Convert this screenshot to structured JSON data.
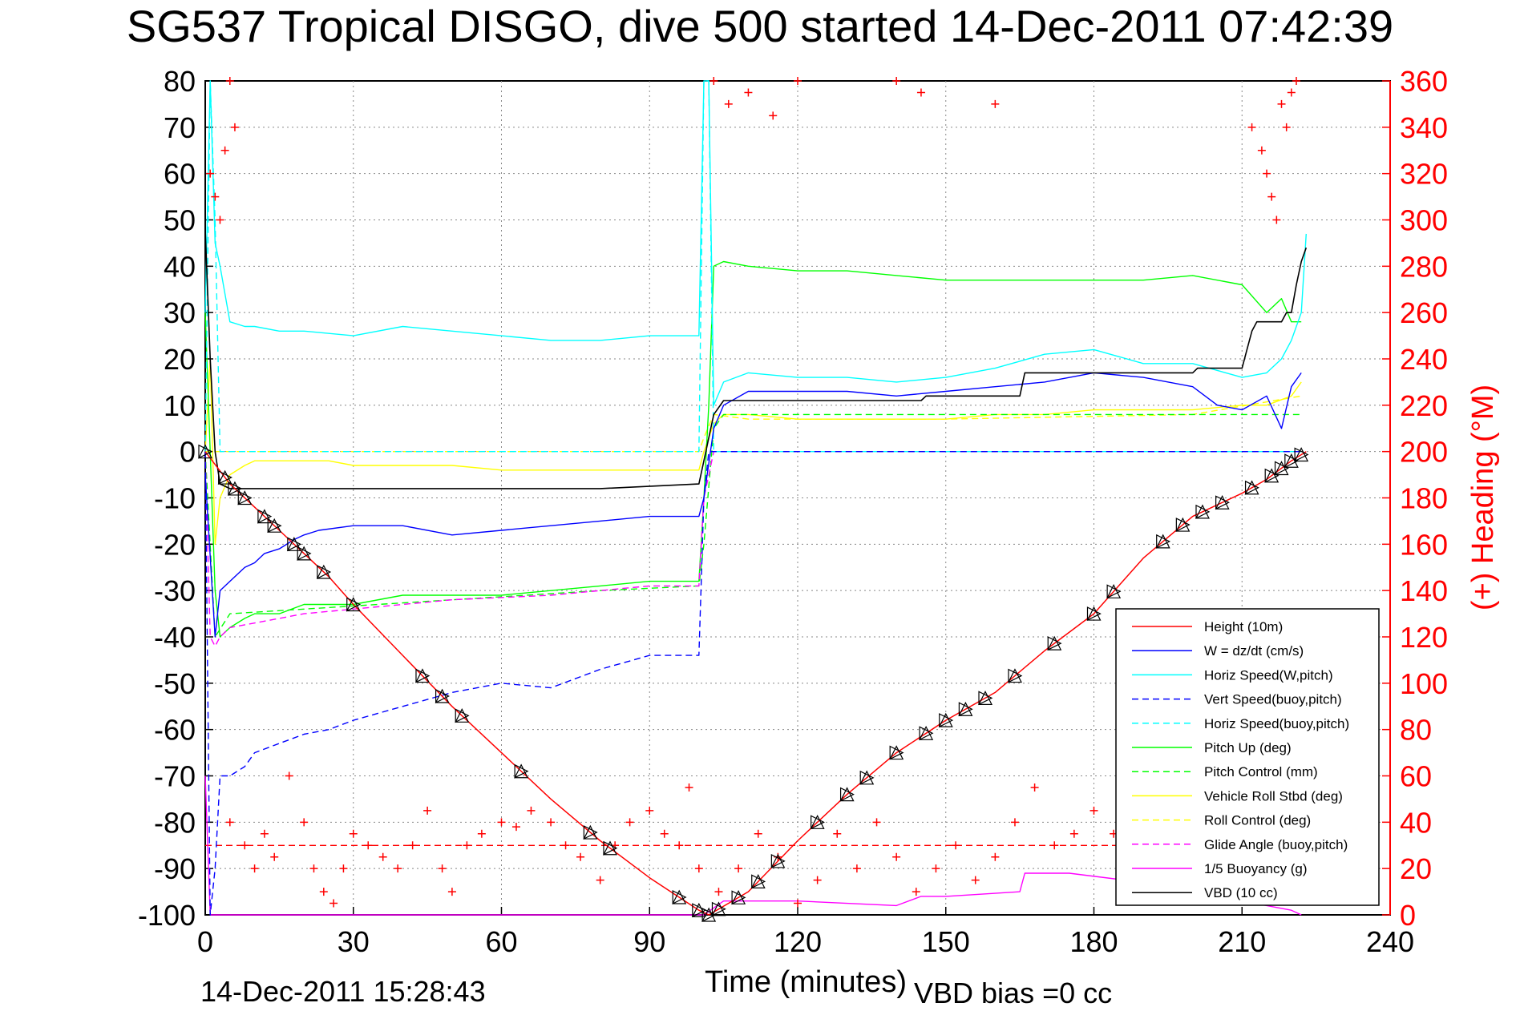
{
  "title": "SG537 Tropical DISGO, dive 500 started 14-Dec-2011 07:42:39",
  "footer": {
    "timestamp": "14-Dec-2011 15:28:43",
    "vbd_bias": "VBD bias =0 cc"
  },
  "colors": {
    "height": "#ff0000",
    "w": "#0000ff",
    "horiz_speed": "#00ffff",
    "pitch": "#00ff00",
    "roll": "#ffff00",
    "glide": "#ff00ff",
    "vbd": "#000000"
  },
  "chart_data": {
    "type": "line",
    "xlabel": "Time (minutes)",
    "ylabel_right": "(+) Heading (°M)",
    "xlim": [
      0,
      240
    ],
    "ylim": [
      -100,
      80
    ],
    "ylim_right": [
      0,
      360
    ],
    "xticks": [
      "0",
      "30",
      "60",
      "90",
      "120",
      "150",
      "180",
      "210",
      "240"
    ],
    "yticks": [
      "80",
      "70",
      "60",
      "50",
      "40",
      "30",
      "20",
      "10",
      "0",
      "-10",
      "-20",
      "-30",
      "-40",
      "-50",
      "-60",
      "-70",
      "-80",
      "-90",
      "-100"
    ],
    "yticks_right": [
      "360",
      "340",
      "320",
      "300",
      "280",
      "260",
      "240",
      "220",
      "200",
      "180",
      "160",
      "140",
      "120",
      "100",
      "80",
      "60",
      "40",
      "20",
      "0"
    ],
    "grid": true,
    "legend_position": "bottom-right",
    "legend": [
      {
        "label": "Height (10m)",
        "color": "#ff0000",
        "style": "solid"
      },
      {
        "label": "W = dz/dt (cm/s)",
        "color": "#0000ff",
        "style": "solid"
      },
      {
        "label": "Horiz Speed(W,pitch)",
        "color": "#00ffff",
        "style": "solid"
      },
      {
        "label": "Vert Speed(buoy,pitch)",
        "color": "#0000ff",
        "style": "dashed"
      },
      {
        "label": "Horiz Speed(buoy,pitch)",
        "color": "#00ffff",
        "style": "dashed"
      },
      {
        "label": "Pitch Up (deg)",
        "color": "#00ff00",
        "style": "solid"
      },
      {
        "label": "Pitch Control (mm)",
        "color": "#00ff00",
        "style": "dashed"
      },
      {
        "label": "Vehicle Roll Stbd (deg)",
        "color": "#ffff00",
        "style": "solid"
      },
      {
        "label": "Roll Control (deg)",
        "color": "#ffff00",
        "style": "dashed"
      },
      {
        "label": "Glide Angle (buoy,pitch)",
        "color": "#ff00ff",
        "style": "dashed"
      },
      {
        "label": "1/5 Buoyancy (g)",
        "color": "#ff00ff",
        "style": "solid"
      },
      {
        "label": "VBD (10 cc)",
        "color": "#000000",
        "style": "solid"
      }
    ],
    "series": [
      {
        "key": "height",
        "x": [
          0,
          5,
          10,
          15,
          20,
          25,
          30,
          40,
          50,
          60,
          70,
          80,
          90,
          100,
          102,
          110,
          120,
          130,
          140,
          150,
          160,
          170,
          180,
          190,
          200,
          210,
          215,
          220,
          223
        ],
        "y": [
          0,
          -7,
          -12,
          -17,
          -22,
          -27,
          -33,
          -44,
          -55,
          -65,
          -75,
          -84,
          -92,
          -99,
          -100,
          -95,
          -84,
          -74,
          -65,
          -58,
          -52,
          -43,
          -35,
          -23,
          -14,
          -9,
          -6,
          -2,
          0
        ]
      },
      {
        "key": "w",
        "x": [
          0,
          2,
          3,
          5,
          8,
          10,
          12,
          15,
          18,
          20,
          23,
          30,
          40,
          50,
          60,
          70,
          80,
          90,
          95,
          100,
          101,
          103,
          105,
          110,
          120,
          130,
          140,
          150,
          160,
          170,
          180,
          190,
          200,
          205,
          210,
          215,
          218,
          220,
          222
        ],
        "y": [
          -5,
          -40,
          -30,
          -28,
          -25,
          -24,
          -22,
          -21,
          -19,
          -18,
          -17,
          -16,
          -16,
          -18,
          -17,
          -16,
          -15,
          -14,
          -14,
          -14,
          -10,
          5,
          10,
          13,
          13,
          13,
          12,
          13,
          14,
          15,
          17,
          16,
          14,
          10,
          9,
          12,
          5,
          14,
          17
        ]
      },
      {
        "key": "horiz_speed",
        "x": [
          0,
          1,
          2,
          3,
          5,
          8,
          10,
          15,
          20,
          30,
          40,
          50,
          60,
          70,
          80,
          90,
          100,
          101,
          102,
          103,
          105,
          110,
          120,
          130,
          140,
          150,
          160,
          170,
          180,
          190,
          200,
          210,
          215,
          218,
          220,
          222,
          223
        ],
        "y": [
          30,
          80,
          45,
          40,
          28,
          27,
          27,
          26,
          26,
          25,
          27,
          26,
          25,
          24,
          24,
          25,
          25,
          80,
          80,
          10,
          15,
          17,
          16,
          16,
          15,
          16,
          18,
          21,
          22,
          19,
          19,
          16,
          17,
          20,
          24,
          30,
          47
        ]
      },
      {
        "key": "vert_speed_buoy",
        "x": [
          0,
          1,
          2,
          3,
          5,
          8,
          10,
          15,
          20,
          25,
          30,
          40,
          50,
          60,
          70,
          80,
          90,
          100,
          101,
          102,
          105,
          110,
          150,
          200,
          222
        ],
        "y": [
          0,
          -100,
          -90,
          -70,
          -70,
          -68,
          -65,
          -63,
          -61,
          -60,
          -58,
          -55,
          -52,
          -50,
          -51,
          -47,
          -44,
          -44,
          -10,
          0,
          0,
          0,
          0,
          0,
          0
        ]
      },
      {
        "key": "horiz_speed_buoy",
        "x": [
          0,
          1,
          2,
          3,
          4,
          5,
          10,
          20,
          100,
          101,
          102,
          103,
          104,
          222
        ],
        "y": [
          0,
          80,
          50,
          0,
          0,
          0,
          0,
          0,
          0,
          80,
          80,
          0,
          0,
          0
        ]
      },
      {
        "key": "pitch_up",
        "x": [
          0,
          1,
          2,
          3,
          5,
          8,
          10,
          15,
          20,
          25,
          30,
          40,
          50,
          60,
          70,
          80,
          90,
          100,
          101,
          102,
          103,
          105,
          110,
          120,
          130,
          140,
          150,
          160,
          170,
          180,
          190,
          200,
          210,
          215,
          218,
          220,
          222
        ],
        "y": [
          30,
          0,
          -30,
          -40,
          -38,
          -36,
          -35,
          -35,
          -33,
          -33,
          -33,
          -31,
          -31,
          -31,
          -30,
          -29,
          -28,
          -28,
          -10,
          10,
          40,
          41,
          40,
          39,
          39,
          38,
          37,
          37,
          37,
          37,
          37,
          38,
          36,
          30,
          33,
          28,
          28
        ]
      },
      {
        "key": "pitch_control",
        "x": [
          0,
          2,
          5,
          20,
          50,
          80,
          100,
          101,
          103,
          105,
          110,
          150,
          200,
          222
        ],
        "y": [
          0,
          -40,
          -35,
          -34,
          -32,
          -30,
          -29,
          -20,
          5,
          8,
          8,
          8,
          8,
          8
        ]
      },
      {
        "key": "roll",
        "x": [
          0,
          1,
          2,
          3,
          5,
          8,
          10,
          15,
          20,
          25,
          30,
          40,
          50,
          60,
          70,
          80,
          90,
          100,
          101,
          103,
          105,
          110,
          120,
          130,
          140,
          150,
          160,
          170,
          180,
          190,
          200,
          210,
          215,
          220,
          222
        ],
        "y": [
          0,
          20,
          -20,
          -10,
          -5,
          -3,
          -2,
          -2,
          -2,
          -2,
          -3,
          -3,
          -3,
          -4,
          -4,
          -4,
          -4,
          -4,
          0,
          6,
          8,
          8,
          7,
          7,
          7,
          7,
          8,
          8,
          9,
          9,
          9,
          10,
          10,
          12,
          15
        ]
      },
      {
        "key": "roll_control",
        "x": [
          0,
          5,
          10,
          20,
          50,
          80,
          100,
          101,
          103,
          110,
          150,
          200,
          222
        ],
        "y": [
          0,
          0,
          0,
          0,
          0,
          0,
          0,
          3,
          8,
          7,
          7,
          8,
          12
        ]
      },
      {
        "key": "glide_angle",
        "x": [
          0,
          1,
          2,
          3,
          5,
          10,
          20,
          30,
          50,
          70,
          90,
          100,
          101,
          103,
          110,
          150,
          200,
          222
        ],
        "y": [
          0,
          -40,
          -42,
          -40,
          -38,
          -37,
          -35,
          -34,
          -32,
          -31,
          -29,
          -29,
          -10,
          0,
          0,
          0,
          0,
          0
        ]
      },
      {
        "key": "buoyancy",
        "x": [
          0,
          1,
          2,
          3,
          100,
          101,
          105,
          120,
          140,
          145,
          150,
          165,
          166,
          175,
          190,
          200,
          210,
          220,
          222
        ],
        "y": [
          -70,
          -100,
          -100,
          -100,
          -100,
          -100,
          -97,
          -97,
          -98,
          -96,
          -96,
          -95,
          -91,
          -91,
          -93,
          -95,
          -97,
          -99,
          -100
        ]
      },
      {
        "key": "vbd",
        "x": [
          0,
          1,
          2,
          3,
          5,
          50,
          80,
          100,
          101,
          103,
          105,
          120,
          145,
          146,
          165,
          166,
          200,
          201,
          210,
          211,
          212,
          213,
          218,
          219,
          220,
          221,
          222,
          223
        ],
        "y": [
          48,
          20,
          0,
          -7,
          -8,
          -8,
          -8,
          -7,
          -2,
          8,
          11,
          11,
          11,
          12,
          12,
          17,
          17,
          18,
          18,
          22,
          26,
          28,
          28,
          30,
          30,
          36,
          41,
          44
        ]
      },
      {
        "key": "heading_mean",
        "x": [
          0,
          222
        ],
        "y": [
          30,
          30
        ]
      }
    ],
    "heading_points_deg": [
      [
        1,
        320
      ],
      [
        2,
        310
      ],
      [
        3,
        300
      ],
      [
        4,
        330
      ],
      [
        5,
        360
      ],
      [
        6,
        340
      ],
      [
        5,
        40
      ],
      [
        8,
        30
      ],
      [
        10,
        20
      ],
      [
        12,
        35
      ],
      [
        14,
        25
      ],
      [
        17,
        60
      ],
      [
        20,
        40
      ],
      [
        22,
        20
      ],
      [
        24,
        10
      ],
      [
        26,
        5
      ],
      [
        28,
        20
      ],
      [
        30,
        35
      ],
      [
        33,
        30
      ],
      [
        36,
        25
      ],
      [
        39,
        20
      ],
      [
        42,
        30
      ],
      [
        45,
        45
      ],
      [
        48,
        20
      ],
      [
        50,
        10
      ],
      [
        53,
        30
      ],
      [
        56,
        35
      ],
      [
        60,
        40
      ],
      [
        63,
        38
      ],
      [
        66,
        45
      ],
      [
        70,
        40
      ],
      [
        73,
        30
      ],
      [
        76,
        25
      ],
      [
        80,
        15
      ],
      [
        83,
        30
      ],
      [
        86,
        40
      ],
      [
        90,
        45
      ],
      [
        93,
        35
      ],
      [
        96,
        30
      ],
      [
        98,
        55
      ],
      [
        100,
        20
      ],
      [
        103,
        360
      ],
      [
        106,
        350
      ],
      [
        110,
        355
      ],
      [
        115,
        345
      ],
      [
        120,
        360
      ],
      [
        140,
        360
      ],
      [
        145,
        355
      ],
      [
        160,
        350
      ],
      [
        104,
        10
      ],
      [
        108,
        20
      ],
      [
        112,
        35
      ],
      [
        116,
        25
      ],
      [
        120,
        5
      ],
      [
        124,
        15
      ],
      [
        128,
        35
      ],
      [
        132,
        20
      ],
      [
        136,
        40
      ],
      [
        140,
        25
      ],
      [
        144,
        10
      ],
      [
        148,
        20
      ],
      [
        152,
        30
      ],
      [
        156,
        15
      ],
      [
        160,
        25
      ],
      [
        164,
        40
      ],
      [
        168,
        55
      ],
      [
        172,
        30
      ],
      [
        176,
        35
      ],
      [
        180,
        45
      ],
      [
        184,
        35
      ],
      [
        188,
        20
      ],
      [
        192,
        30
      ],
      [
        196,
        25
      ],
      [
        200,
        15
      ],
      [
        204,
        20
      ],
      [
        208,
        10
      ],
      [
        212,
        340
      ],
      [
        214,
        330
      ],
      [
        215,
        320
      ],
      [
        216,
        310
      ],
      [
        217,
        300
      ],
      [
        218,
        350
      ],
      [
        219,
        340
      ],
      [
        220,
        355
      ],
      [
        221,
        360
      ]
    ],
    "triangle_marker_times": [
      0,
      4,
      6,
      8,
      12,
      14,
      18,
      20,
      24,
      30,
      44,
      48,
      52,
      64,
      78,
      82,
      96,
      100,
      102,
      104,
      108,
      112,
      116,
      124,
      130,
      134,
      140,
      146,
      150,
      154,
      158,
      164,
      172,
      180,
      184,
      194,
      198,
      202,
      206,
      212,
      216,
      218,
      220,
      222
    ]
  }
}
